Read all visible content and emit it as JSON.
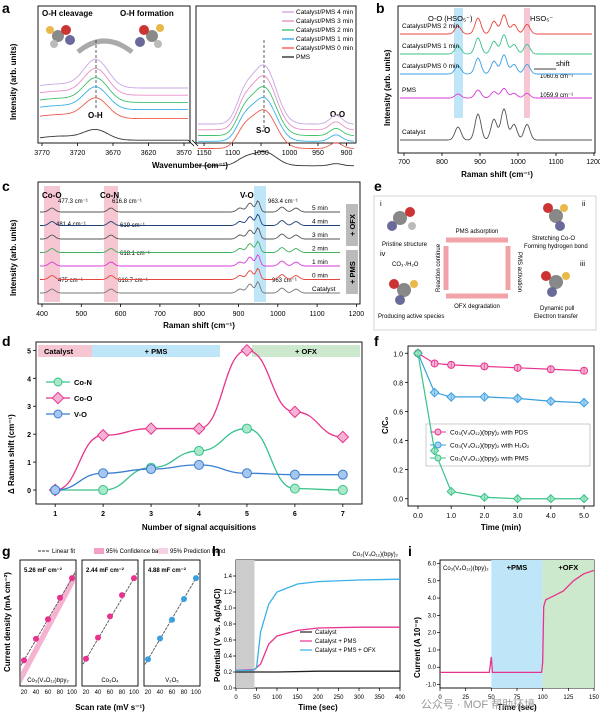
{
  "colors": {
    "pink": "#e8338e",
    "green": "#39c28a",
    "blue": "#3a7fd0",
    "red": "#e8453c",
    "magenta": "#d93ad9",
    "gray": "#777777",
    "navy": "#1f3f78",
    "shadePink": "#f7c6d3",
    "shadeBlue": "#bfe6f8",
    "shadeGreen": "#cde9cd",
    "shadeGray": "#cccccc"
  },
  "panel_labels": [
    "a",
    "b",
    "c",
    "d",
    "e",
    "f",
    "g",
    "h",
    "i"
  ],
  "watermark": "公众号 · MOF 帮助环境",
  "panel_a": {
    "xlabel": "Wavenumber (cm⁻¹)",
    "ylabel": "Intensity (arb. units)",
    "left_ticks": [
      "3770",
      "3720",
      "3670",
      "3620",
      "3570"
    ],
    "right_ticks": [
      "1150",
      "1100",
      "1050",
      "1000",
      "950",
      "900"
    ],
    "annotations": {
      "oh_cleavage": "O-H cleavage",
      "oh_formation": "O-H formation",
      "oh": "O-H",
      "so": "S-O",
      "oo": "O-O"
    },
    "legend": [
      {
        "label": "Catalyst/PMS 4 min",
        "color": "#c9a6e6"
      },
      {
        "label": "Catalyst/PMS 3 min",
        "color": "#e88fc8"
      },
      {
        "label": "Catalyst/PMS 2 min",
        "color": "#3fc06c"
      },
      {
        "label": "Catalyst/PMS 1 min",
        "color": "#39b0e8"
      },
      {
        "label": "Catalyst/PMS 0 min",
        "color": "#ee5b4c"
      },
      {
        "label": "PMS",
        "color": "#333333"
      }
    ]
  },
  "panel_b": {
    "xlabel": "Raman shift (cm⁻¹)",
    "ylabel": "Intensity (arb. units)",
    "ticks": [
      "700",
      "800",
      "900",
      "1000",
      "1100",
      "1200"
    ],
    "labels": {
      "oo": "O-O (HSO₅⁻)",
      "hso5": "HSO₅⁻",
      "shift": "shift",
      "v1": "1060.6 cm⁻¹",
      "v2": "1059.9 cm⁻¹"
    },
    "series": [
      {
        "label": "Catalyst/PMS 2 min",
        "color": "#e8453c"
      },
      {
        "label": "Catalyst/PMS 1 min",
        "color": "#39c28a"
      },
      {
        "label": "Catalyst/PMS 0 min",
        "color": "#3a9fe0"
      },
      {
        "label": "PMS",
        "color": "#d93ad9"
      },
      {
        "label": "Catalyst",
        "color": "#555555"
      }
    ]
  },
  "panel_c": {
    "xlabel": "Raman shift (cm⁻¹)",
    "ylabel": "Intensity (arb. units)",
    "ticks": [
      "400",
      "500",
      "600",
      "700",
      "800",
      "900",
      "1000",
      "1100",
      "1200"
    ],
    "bands": {
      "coo": "Co-O",
      "con": "Co-N",
      "vo": "V-O"
    },
    "peaks": [
      "477.3 cm⁻¹",
      "616.8 cm⁻¹",
      "963.4 cm⁻¹",
      "481.4 cm⁻¹",
      "619 cm⁻¹",
      "618.1 cm⁻¹",
      "475 cm⁻¹",
      "616.7 cm⁻¹",
      "963 cm⁻¹"
    ],
    "rows": [
      "5 min",
      "4 min",
      "3 min",
      "2 min",
      "1 min",
      "0 min",
      "Catalyst"
    ],
    "side": {
      "ofx": "+ OFX",
      "pms": "+ PMS"
    }
  },
  "panel_e": {
    "items": {
      "i": "i",
      "ii": "ii",
      "iii": "iii",
      "iv": "iv"
    },
    "captions": {
      "i": "Pristine structure",
      "ii1": "Stretching Co-O",
      "ii2": "Forming hydrogen bond",
      "iii1": "Dynamic pull",
      "iii2": "Electron transfer",
      "iv": "Producing active species"
    },
    "arrows": {
      "top": "PMS adsorption",
      "right": "PMS activation",
      "bottom": "OFX degradation",
      "left": "Reaction continue"
    },
    "radical": "CO₃·/H₂O"
  },
  "chart_data": [
    {
      "panel": "d",
      "type": "line",
      "xlabel": "Number of signal acquisitions",
      "ylabel": "Δ Raman shift (cm⁻¹)",
      "x": [
        1,
        2,
        3,
        4,
        5,
        6,
        7
      ],
      "xlim": [
        0.6,
        7.4
      ],
      "ylim": [
        -0.5,
        5.3
      ],
      "yticks": [
        0,
        1,
        2,
        3,
        4,
        5
      ],
      "stage_labels": [
        "Catalyst",
        "+ PMS",
        "+ OFX"
      ],
      "series": [
        {
          "name": "Co-N",
          "color": "#39c28a",
          "values": [
            0,
            0,
            0.8,
            1.4,
            2.2,
            0.05,
            0
          ]
        },
        {
          "name": "Co-O",
          "color": "#e8338e",
          "values": [
            0,
            1.96,
            2.2,
            2.2,
            5.0,
            2.8,
            1.9
          ]
        },
        {
          "name": "V-O",
          "color": "#3a7fd0",
          "values": [
            0,
            0.6,
            0.75,
            0.9,
            0.6,
            0.55,
            0.55
          ]
        }
      ]
    },
    {
      "panel": "f",
      "type": "line",
      "xlabel": "Time (min)",
      "ylabel": "C/C₀",
      "x": [
        0,
        0.5,
        1.0,
        2.0,
        3.0,
        4.0,
        5.0
      ],
      "xlim": [
        -0.3,
        5.3
      ],
      "ylim": [
        -0.05,
        1.05
      ],
      "xticks": [
        "0.0",
        "1.0",
        "2.0",
        "3.0",
        "4.0",
        "5.0"
      ],
      "yticks": [
        "0.0",
        "0.2",
        "0.4",
        "0.6",
        "0.8",
        "1.0"
      ],
      "series": [
        {
          "name": "Co₃(V₄O₁₂)(bpy)₂ with PDS",
          "color": "#e8338e",
          "values": [
            1.0,
            0.93,
            0.92,
            0.91,
            0.9,
            0.89,
            0.88
          ]
        },
        {
          "name": "Co₃(V₄O₁₂)(bpy)₂ with H₂O₂",
          "color": "#3a9fe0",
          "values": [
            1.0,
            0.73,
            0.7,
            0.7,
            0.69,
            0.67,
            0.66
          ]
        },
        {
          "name": "Co₃(V₄O₁₂)(bpy)₂ with PMS",
          "color": "#39c28a",
          "values": [
            1.0,
            0.33,
            0.05,
            0.01,
            0.0,
            0.0,
            0.0
          ]
        }
      ]
    },
    {
      "panel": "g",
      "type": "scatter",
      "xlabel": "Scan rate (mV s⁻¹)",
      "ylabel": "Current density (mA cm⁻²)",
      "legend": [
        "Linear fit",
        "95% Confidence band",
        "95% Prediction band"
      ],
      "xticks": [
        "20",
        "40",
        "60",
        "80",
        "100"
      ],
      "subplots": [
        {
          "name": "Co₃(V₄O₁₂)bpy₂",
          "slope_label": "5.26 mF cm⁻²",
          "label_color": "#39c28a",
          "color": "#e8338e",
          "x": [
            20,
            40,
            60,
            80,
            100
          ],
          "y": [
            0.1,
            0.21,
            0.31,
            0.42,
            0.52
          ]
        },
        {
          "name": "Co₃O₄",
          "slope_label": "2.44 mF cm⁻²",
          "label_color": "#e8338e",
          "color": "#e8338e",
          "x": [
            20,
            40,
            60,
            80,
            100
          ],
          "y": [
            0.05,
            0.1,
            0.15,
            0.2,
            0.24
          ]
        },
        {
          "name": "V₂O₅",
          "slope_label": "4.88 mF cm⁻²",
          "label_color": "#3a7fd0",
          "color": "#3a9fe0",
          "x": [
            20,
            40,
            60,
            80,
            100
          ],
          "y": [
            0.1,
            0.2,
            0.29,
            0.39,
            0.49
          ]
        }
      ]
    },
    {
      "panel": "h",
      "type": "line",
      "title": "Co₃(V₄O₁₂)(bpy)₂",
      "xlabel": "Time (sec)",
      "ylabel": "Potential (V vs. Ag/AgCl)",
      "xlim": [
        0,
        400
      ],
      "ylim": [
        0,
        1.6
      ],
      "xticks": [
        "0",
        "50",
        "100",
        "150",
        "200",
        "250",
        "300",
        "350",
        "400"
      ],
      "yticks": [
        "0.0",
        "0.2",
        "0.4",
        "0.6",
        "0.8",
        "1.0",
        "1.2",
        "1.4"
      ],
      "shade_x": [
        0,
        45
      ],
      "series": [
        {
          "name": "Catalyst",
          "color": "#222222",
          "x": [
            0,
            50,
            100,
            200,
            300,
            400
          ],
          "y": [
            0.2,
            0.2,
            0.2,
            0.21,
            0.21,
            0.21
          ]
        },
        {
          "name": "Catalyst + PMS",
          "color": "#e8338e",
          "x": [
            0,
            45,
            60,
            80,
            100,
            150,
            200,
            300,
            400
          ],
          "y": [
            0.22,
            0.23,
            0.3,
            0.55,
            0.65,
            0.72,
            0.75,
            0.76,
            0.76
          ]
        },
        {
          "name": "Catalyst + PMS + OFX",
          "color": "#39b0e8",
          "x": [
            0,
            40,
            50,
            60,
            80,
            100,
            150,
            200,
            300,
            400
          ],
          "y": [
            0.22,
            0.22,
            0.25,
            0.7,
            1.05,
            1.2,
            1.3,
            1.33,
            1.35,
            1.36
          ]
        }
      ]
    },
    {
      "panel": "i",
      "type": "line",
      "title": "Co₃(V₄O₁₂)(bpy)₂",
      "xlabel": "Time (sec)",
      "ylabel": "Current (A 10⁻⁸)",
      "xlim": [
        0,
        150
      ],
      "ylim": [
        -1.2,
        6.2
      ],
      "xticks": [
        "0",
        "25",
        "50",
        "75",
        "100",
        "125",
        "150"
      ],
      "yticks": [
        "-1.0",
        "0.0",
        "1.0",
        "2.0",
        "3.0",
        "4.0",
        "5.0",
        "6.0"
      ],
      "stage_labels": [
        "+PMS",
        "+OFX"
      ],
      "shade_pms": [
        50,
        100
      ],
      "shade_ofx": [
        100,
        150
      ],
      "series": [
        {
          "name": "current",
          "color": "#e8338e",
          "x": [
            0,
            48,
            50,
            51,
            53,
            60,
            99,
            100,
            101,
            103,
            110,
            120,
            130,
            140,
            150
          ],
          "y": [
            -0.3,
            -0.3,
            0.6,
            -0.3,
            -0.3,
            -0.3,
            -0.3,
            0.3,
            3.5,
            3.9,
            4.1,
            4.4,
            5.0,
            5.4,
            5.6
          ]
        }
      ]
    }
  ]
}
